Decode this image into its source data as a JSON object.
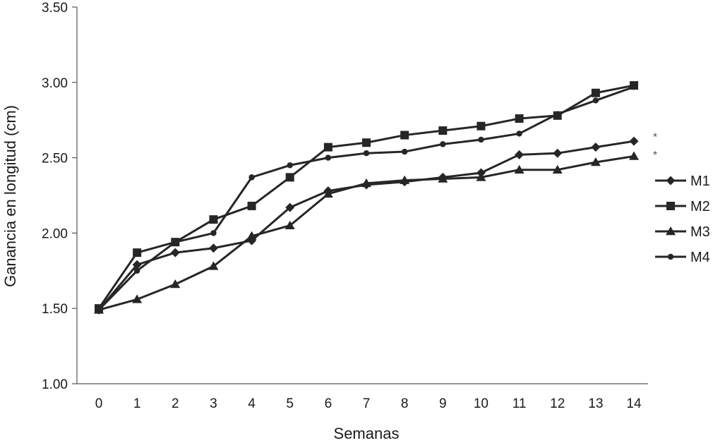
{
  "chart_data": {
    "type": "line",
    "xlabel": "Semanas",
    "ylabel": "Ganancia en longitud (cm)",
    "x": [
      0,
      1,
      2,
      3,
      4,
      5,
      6,
      7,
      8,
      9,
      10,
      11,
      12,
      13,
      14
    ],
    "x_tick_labels": [
      "0",
      "1",
      "2",
      "3",
      "4",
      "5",
      "6",
      "7",
      "8",
      "9",
      "10",
      "11",
      "12",
      "13",
      "14"
    ],
    "ylim": [
      1.0,
      3.5
    ],
    "y_ticks": [
      1.0,
      1.5,
      2.0,
      2.5,
      3.0,
      3.5
    ],
    "y_tick_labels": [
      "1.00",
      "1.50",
      "2.00",
      "2.50",
      "3.00",
      "3.50"
    ],
    "grid": false,
    "legend_position": "right",
    "series": [
      {
        "name": "M1",
        "marker": "diamond",
        "values": [
          1.49,
          1.79,
          1.87,
          1.9,
          1.95,
          2.17,
          2.28,
          2.32,
          2.34,
          2.37,
          2.4,
          2.52,
          2.53,
          2.57,
          2.61
        ]
      },
      {
        "name": "M2",
        "marker": "square",
        "values": [
          1.5,
          1.87,
          1.94,
          2.09,
          2.18,
          2.37,
          2.57,
          2.6,
          2.65,
          2.68,
          2.71,
          2.76,
          2.78,
          2.93,
          2.98
        ]
      },
      {
        "name": "M3",
        "marker": "triangle",
        "values": [
          1.49,
          1.56,
          1.66,
          1.78,
          1.98,
          2.05,
          2.26,
          2.33,
          2.35,
          2.36,
          2.37,
          2.42,
          2.42,
          2.47,
          2.51
        ]
      },
      {
        "name": "M4",
        "marker": "circle",
        "values": [
          1.49,
          1.75,
          1.94,
          2.0,
          2.37,
          2.45,
          2.5,
          2.53,
          2.54,
          2.59,
          2.62,
          2.66,
          2.79,
          2.88,
          2.97
        ]
      }
    ],
    "annotations": [
      {
        "text": "*",
        "value": 2.67
      },
      {
        "text": "*",
        "value": 2.55
      }
    ]
  }
}
